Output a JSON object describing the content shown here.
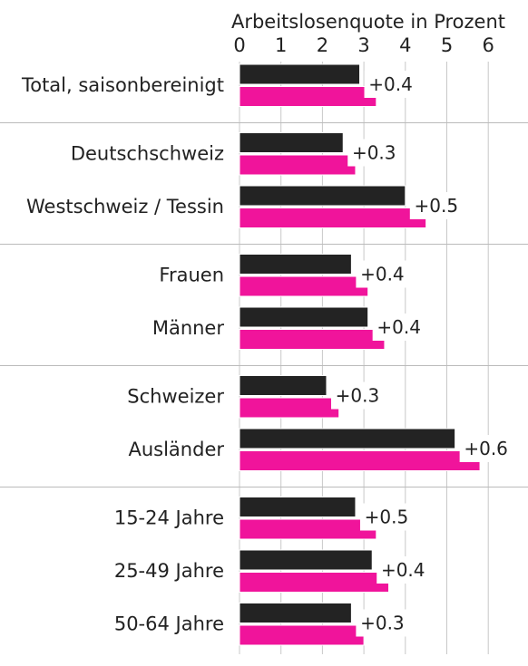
{
  "chart_data": {
    "type": "bar",
    "orientation": "horizontal",
    "title": "Arbeitslosenquote in Prozent",
    "xlim": [
      0,
      7
    ],
    "x_ticks": [
      0,
      1,
      2,
      3,
      4,
      5,
      6
    ],
    "grid": true,
    "categories": [
      "Total, saisonbereinigt",
      "Deutschschweiz",
      "Westschweiz / Tessin",
      "Frauen",
      "Männer",
      "Schweizer",
      "Ausländer",
      "15-24 Jahre",
      "25-49 Jahre",
      "50-64 Jahre"
    ],
    "groups": [
      [
        0
      ],
      [
        1,
        2
      ],
      [
        3,
        4
      ],
      [
        5,
        6
      ],
      [
        7,
        8,
        9
      ]
    ],
    "series": [
      {
        "color": "#232323",
        "values": [
          2.9,
          2.5,
          4.0,
          2.7,
          3.1,
          2.1,
          5.2,
          2.8,
          3.2,
          2.7
        ]
      },
      {
        "color": "#f0149b",
        "values": [
          3.3,
          2.8,
          4.5,
          3.1,
          3.5,
          2.4,
          5.8,
          3.3,
          3.6,
          3.0
        ]
      }
    ],
    "annotations": [
      "+0.4",
      "+0.3",
      "+0.5",
      "+0.4",
      "+0.4",
      "+0.3",
      "+0.6",
      "+0.5",
      "+0.4",
      "+0.3"
    ]
  }
}
